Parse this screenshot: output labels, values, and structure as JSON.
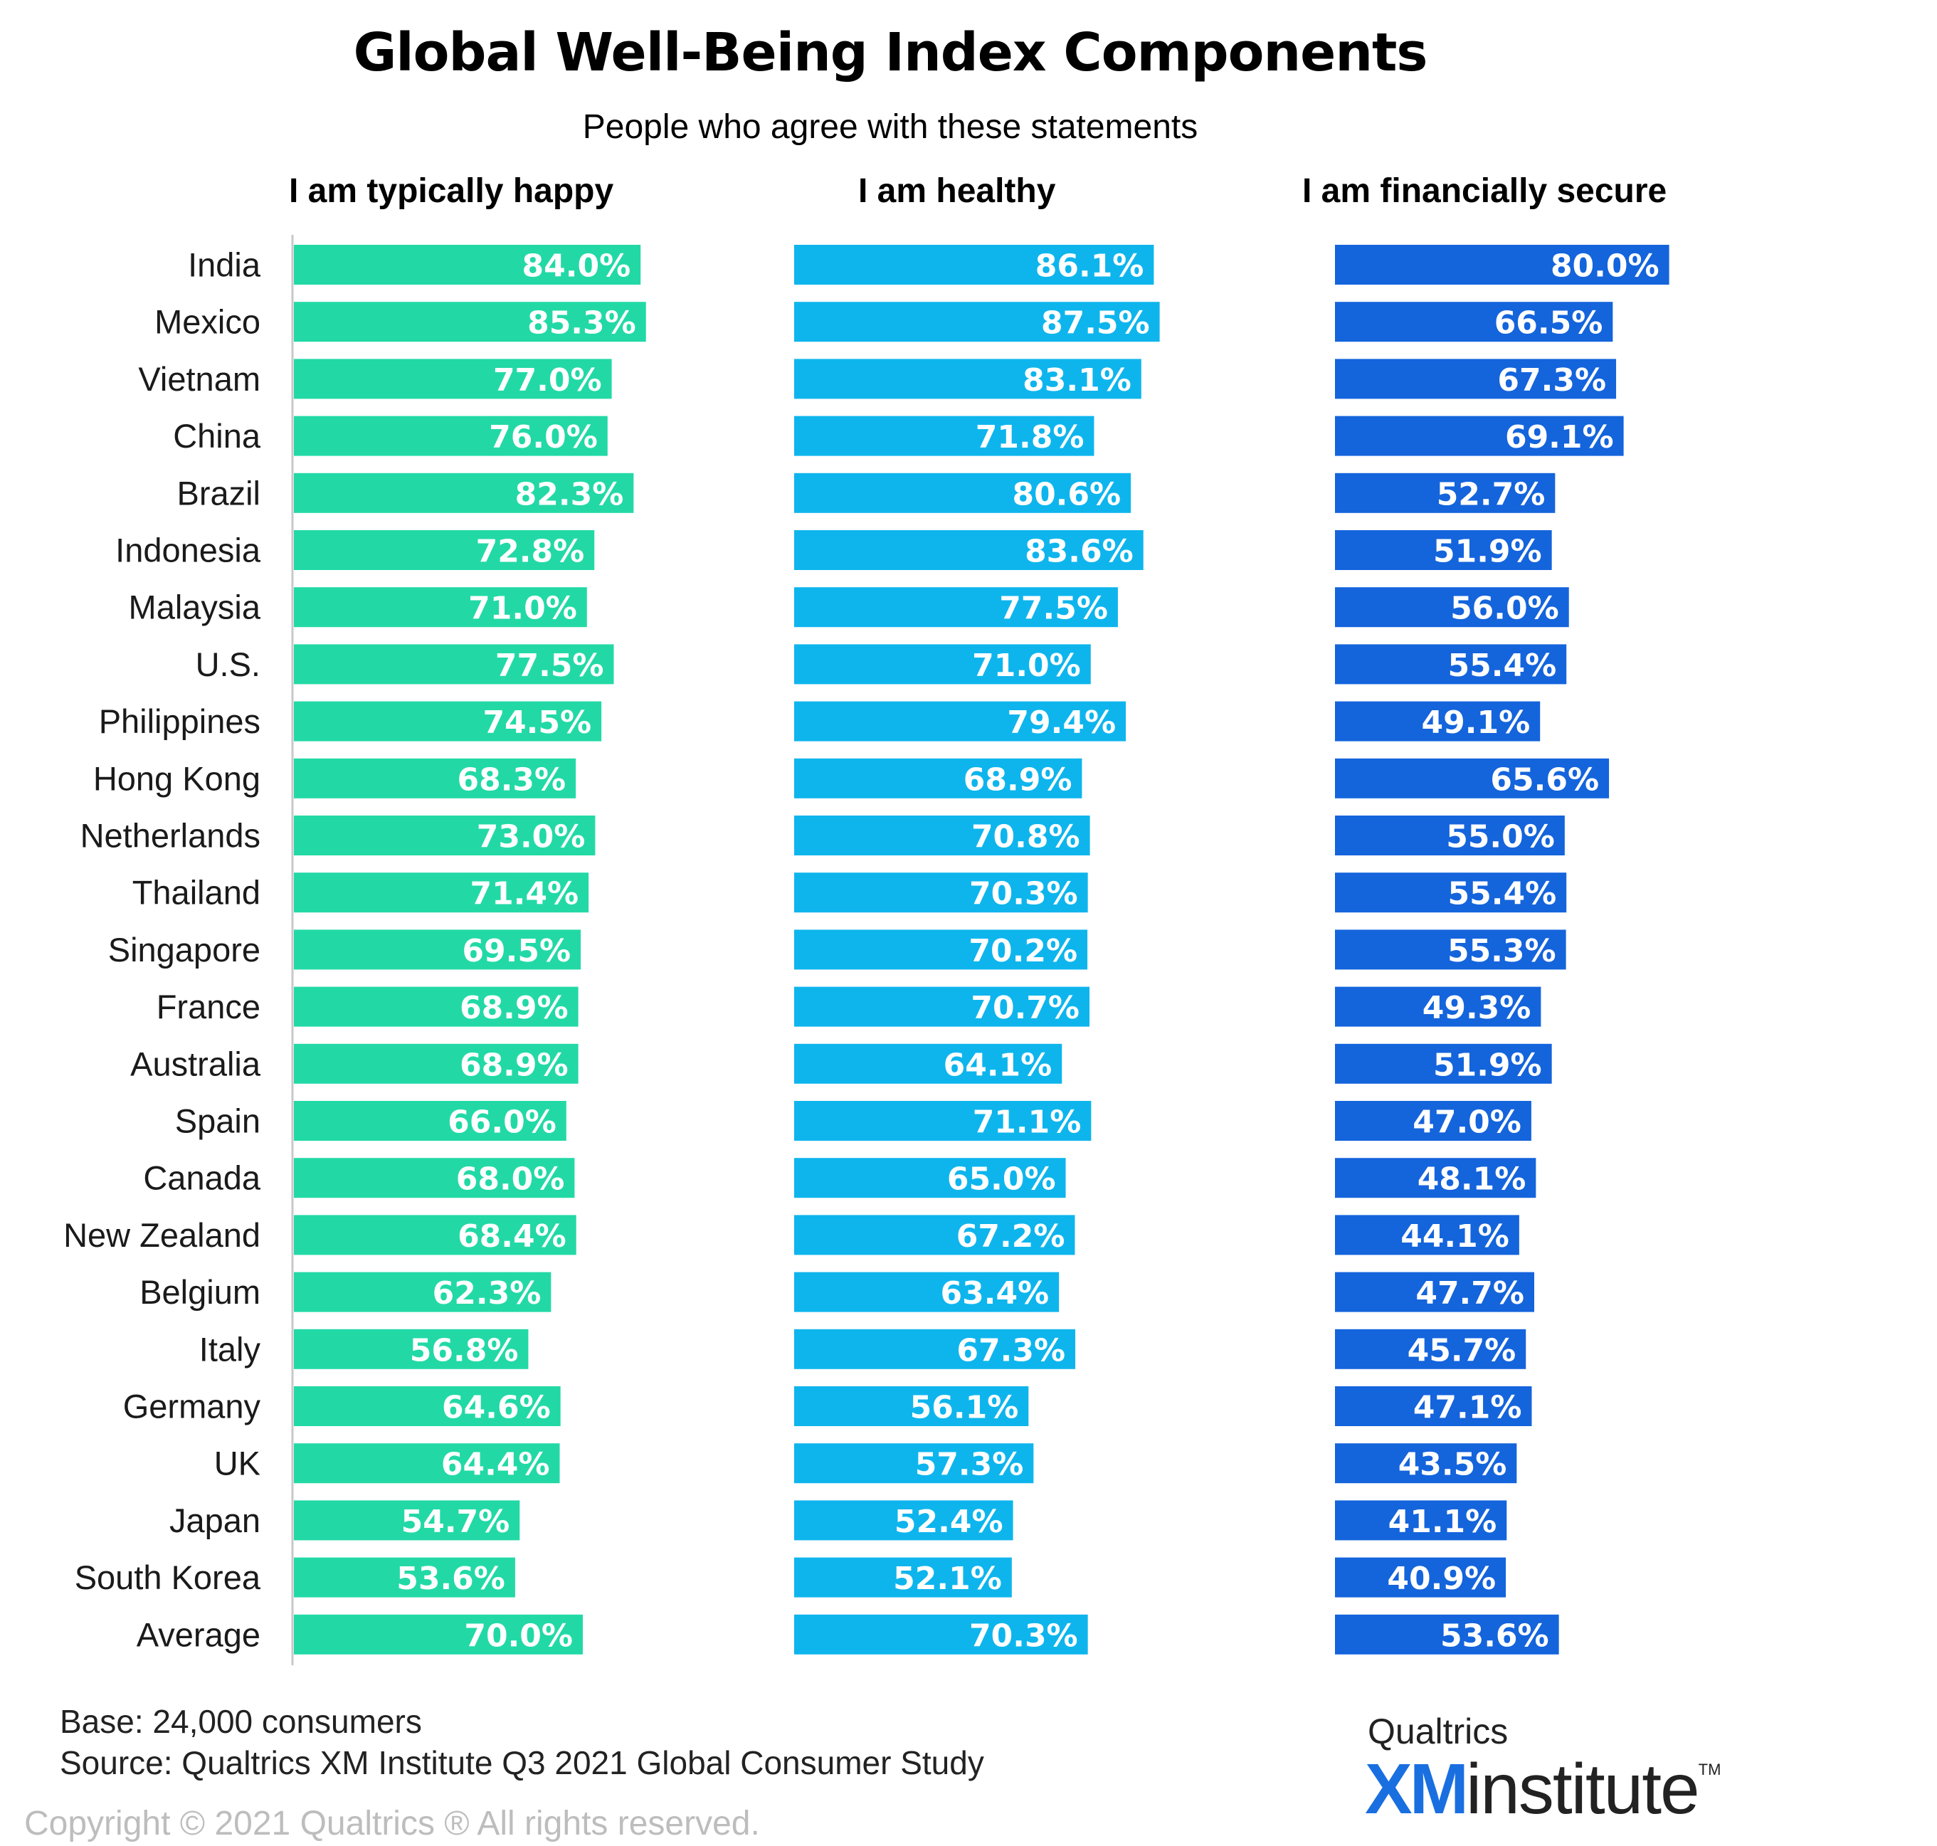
{
  "chart_data": {
    "type": "bar",
    "orientation": "horizontal",
    "title": "Global Well-Being Index Components",
    "subtitle": "People who agree with these statements",
    "categories": [
      "India",
      "Mexico",
      "Vietnam",
      "China",
      "Brazil",
      "Indonesia",
      "Malaysia",
      "U.S.",
      "Philippines",
      "Hong Kong",
      "Netherlands",
      "Thailand",
      "Singapore",
      "France",
      "Australia",
      "Spain",
      "Canada",
      "New Zealand",
      "Belgium",
      "Italy",
      "Germany",
      "UK",
      "Japan",
      "South Korea",
      "Average"
    ],
    "series": [
      {
        "name": "I am typically happy",
        "color": "#22d9a6",
        "values": [
          84.0,
          85.3,
          77.0,
          76.0,
          82.3,
          72.8,
          71.0,
          77.5,
          74.5,
          68.3,
          73.0,
          71.4,
          69.5,
          68.9,
          68.9,
          66.0,
          68.0,
          68.4,
          62.3,
          56.8,
          64.6,
          64.4,
          54.7,
          53.6,
          70.0
        ],
        "labels": [
          "84.0%",
          "85.3%",
          "77.0%",
          "76.0%",
          "82.3%",
          "72.8%",
          "71.0%",
          "77.5%",
          "74.5%",
          "68.3%",
          "73.0%",
          "71.4%",
          "69.5%",
          "68.9%",
          "68.9%",
          "66.0%",
          "68.0%",
          "68.4%",
          "62.3%",
          "56.8%",
          "64.6%",
          "64.4%",
          "54.7%",
          "53.6%",
          "70.0%"
        ]
      },
      {
        "name": "I am healthy",
        "color": "#0eb5ed",
        "values": [
          86.1,
          87.5,
          83.1,
          71.8,
          80.6,
          83.6,
          77.5,
          71.0,
          79.4,
          68.9,
          70.8,
          70.3,
          70.2,
          70.7,
          64.1,
          71.1,
          65.0,
          67.2,
          63.4,
          67.3,
          56.1,
          57.3,
          52.4,
          52.1,
          70.3
        ],
        "labels": [
          "86.1%",
          "87.5%",
          "83.1%",
          "71.8%",
          "80.6%",
          "83.6%",
          "77.5%",
          "71.0%",
          "79.4%",
          "68.9%",
          "70.8%",
          "70.3%",
          "70.2%",
          "70.7%",
          "64.1%",
          "71.1%",
          "65.0%",
          "67.2%",
          "63.4%",
          "67.3%",
          "56.1%",
          "57.3%",
          "52.4%",
          "52.1%",
          "70.3%"
        ]
      },
      {
        "name": "I am financially secure",
        "color": "#1464dc",
        "values": [
          80.0,
          66.5,
          67.3,
          69.1,
          52.7,
          51.9,
          56.0,
          55.4,
          49.1,
          65.6,
          55.0,
          55.4,
          55.3,
          49.3,
          51.9,
          47.0,
          48.1,
          44.1,
          47.7,
          45.7,
          47.1,
          43.5,
          41.1,
          40.9,
          53.6
        ],
        "labels": [
          "80.0%",
          "66.5%",
          "67.3%",
          "69.1%",
          "52.7%",
          "51.9%",
          "56.0%",
          "55.4%",
          "49.1%",
          "65.6%",
          "55.0%",
          "55.4%",
          "55.3%",
          "49.3%",
          "51.9%",
          "47.0%",
          "48.1%",
          "44.1%",
          "47.7%",
          "45.7%",
          "47.1%",
          "43.5%",
          "41.1%",
          "40.9%",
          "53.6%"
        ]
      }
    ],
    "xlim": [
      0,
      100
    ],
    "grid": false,
    "legend": "none"
  },
  "footer": {
    "base": "Base: 24,000 consumers",
    "source": "Source: Qualtrics XM Institute Q3 2021 Global Consumer Study",
    "copyright": "Copyright © 2021 Qualtrics ® All rights reserved."
  },
  "logo": {
    "brand": "Qualtrics",
    "xm": "XM",
    "institute": "institute",
    "tm": "TM"
  }
}
